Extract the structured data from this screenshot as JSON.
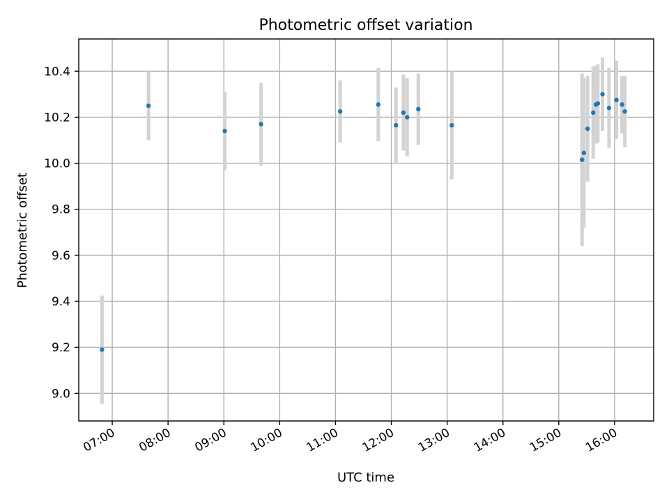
{
  "chart_data": {
    "type": "scatter",
    "title": "Photometric offset variation",
    "xlabel": "UTC time",
    "ylabel": "Photometric offset",
    "grid": true,
    "xlim": [
      "06:24",
      "16:42"
    ],
    "ylim": [
      8.88,
      10.54
    ],
    "x_ticks": [
      "07:00",
      "08:00",
      "09:00",
      "10:00",
      "11:00",
      "12:00",
      "13:00",
      "14:00",
      "15:00",
      "16:00"
    ],
    "y_ticks": [
      9.0,
      9.2,
      9.4,
      9.6,
      9.8,
      10.0,
      10.2,
      10.4
    ],
    "y_tick_labels": [
      "9.0",
      "9.2",
      "9.4",
      "9.6",
      "9.8",
      "10.0",
      "10.2",
      "10.4"
    ],
    "marker_color": "#1f77b4",
    "errorbar_color": "#d3d3d3",
    "points": [
      {
        "x": "06:49",
        "y": 9.19,
        "err": 0.235
      },
      {
        "x": "07:39",
        "y": 10.25,
        "err": 0.15
      },
      {
        "x": "09:01",
        "y": 10.14,
        "err": 0.17
      },
      {
        "x": "09:40",
        "y": 10.17,
        "err": 0.18
      },
      {
        "x": "11:05",
        "y": 10.225,
        "err": 0.135
      },
      {
        "x": "11:46",
        "y": 10.255,
        "err": 0.16
      },
      {
        "x": "12:05",
        "y": 10.165,
        "err": 0.165
      },
      {
        "x": "12:13",
        "y": 10.22,
        "err": 0.165
      },
      {
        "x": "12:17",
        "y": 10.2,
        "err": 0.17
      },
      {
        "x": "12:29",
        "y": 10.235,
        "err": 0.155
      },
      {
        "x": "13:05",
        "y": 10.165,
        "err": 0.235
      },
      {
        "x": "15:25",
        "y": 10.015,
        "err": 0.375
      },
      {
        "x": "15:27",
        "y": 10.045,
        "err": 0.325
      },
      {
        "x": "15:31",
        "y": 10.15,
        "err": 0.23
      },
      {
        "x": "15:37",
        "y": 10.22,
        "err": 0.2
      },
      {
        "x": "15:40",
        "y": 10.255,
        "err": 0.17
      },
      {
        "x": "15:42",
        "y": 10.26,
        "err": 0.17
      },
      {
        "x": "15:47",
        "y": 10.3,
        "err": 0.16
      },
      {
        "x": "15:54",
        "y": 10.24,
        "err": 0.175
      },
      {
        "x": "16:02",
        "y": 10.275,
        "err": 0.17
      },
      {
        "x": "16:08",
        "y": 10.255,
        "err": 0.125
      },
      {
        "x": "16:11",
        "y": 10.225,
        "err": 0.155
      }
    ]
  }
}
